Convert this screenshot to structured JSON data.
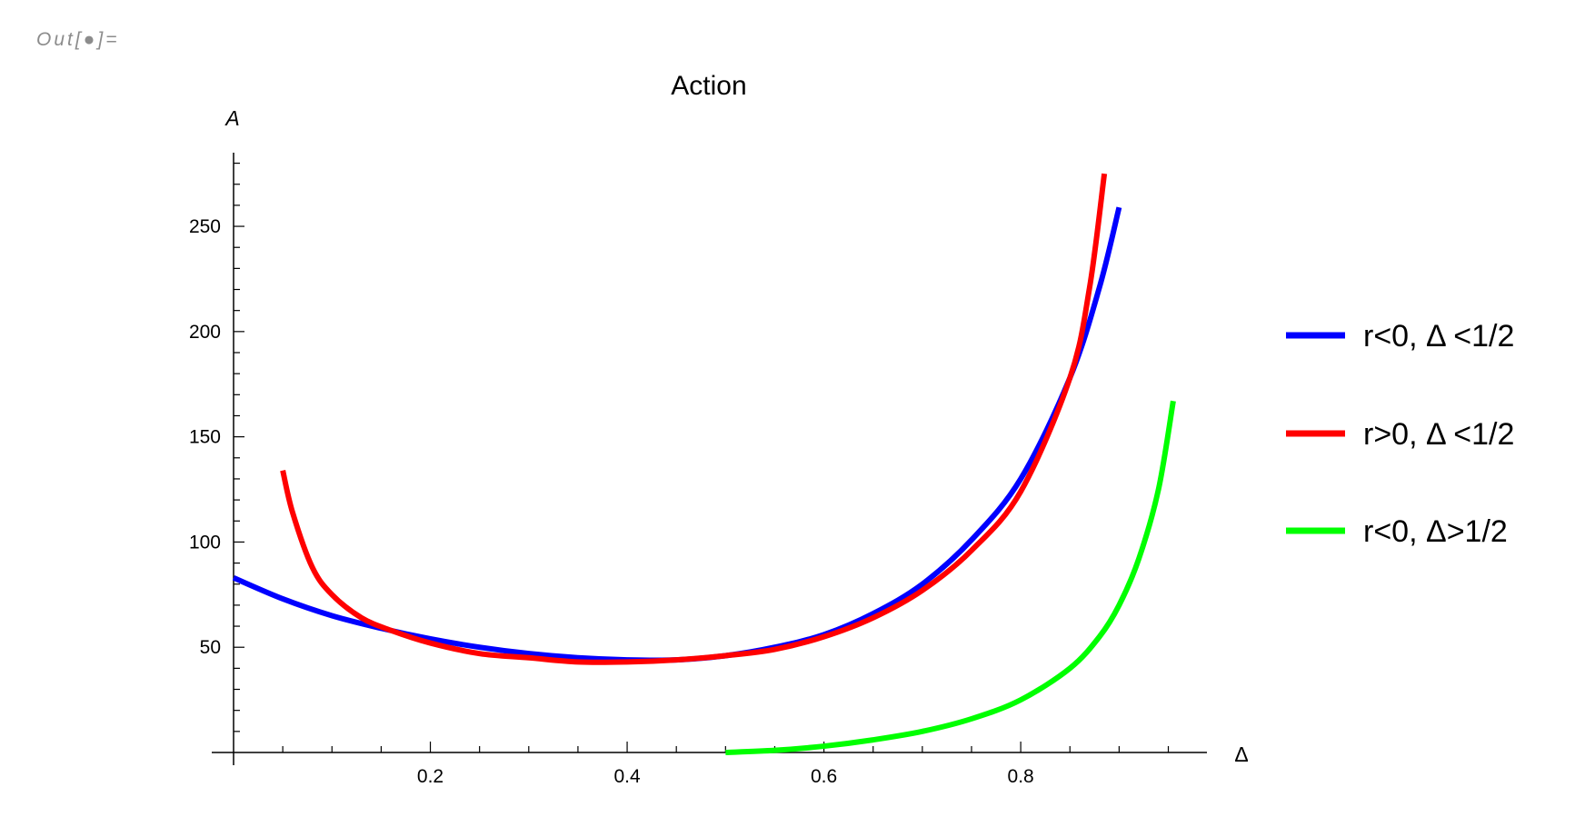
{
  "output_label": "Out[●]=",
  "chart_data": {
    "type": "line",
    "title": "Action",
    "xlabel": "Δ",
    "ylabel": "A",
    "xlim": [
      0,
      0.98
    ],
    "ylim": [
      0,
      285
    ],
    "x_ticks": [
      0.2,
      0.4,
      0.6,
      0.8
    ],
    "x_tick_labels": [
      "0.2",
      "0.4",
      "0.6",
      "0.8"
    ],
    "y_ticks": [
      50,
      100,
      150,
      200,
      250
    ],
    "y_tick_labels": [
      "50",
      "100",
      "150",
      "200",
      "250"
    ],
    "grid": false,
    "legend_position": "right",
    "series": [
      {
        "name": "r<0, Δ <1/2",
        "color": "#0000ff",
        "points": [
          [
            0.0,
            83
          ],
          [
            0.05,
            73
          ],
          [
            0.1,
            65
          ],
          [
            0.15,
            59
          ],
          [
            0.2,
            54
          ],
          [
            0.25,
            50
          ],
          [
            0.3,
            47
          ],
          [
            0.35,
            45
          ],
          [
            0.4,
            44
          ],
          [
            0.45,
            44
          ],
          [
            0.5,
            46
          ],
          [
            0.55,
            50
          ],
          [
            0.6,
            56
          ],
          [
            0.65,
            66
          ],
          [
            0.7,
            80
          ],
          [
            0.75,
            101
          ],
          [
            0.8,
            130
          ],
          [
            0.85,
            178
          ],
          [
            0.88,
            221
          ],
          [
            0.9,
            259
          ]
        ]
      },
      {
        "name": "r>0, Δ <1/2",
        "color": "#ff0000",
        "points": [
          [
            0.05,
            134
          ],
          [
            0.06,
            114
          ],
          [
            0.08,
            88
          ],
          [
            0.1,
            75
          ],
          [
            0.13,
            64
          ],
          [
            0.16,
            58
          ],
          [
            0.2,
            52
          ],
          [
            0.25,
            47
          ],
          [
            0.3,
            45
          ],
          [
            0.35,
            43
          ],
          [
            0.4,
            43
          ],
          [
            0.45,
            44
          ],
          [
            0.5,
            46
          ],
          [
            0.55,
            49
          ],
          [
            0.6,
            55
          ],
          [
            0.65,
            64
          ],
          [
            0.7,
            77
          ],
          [
            0.75,
            96
          ],
          [
            0.8,
            124
          ],
          [
            0.85,
            178
          ],
          [
            0.87,
            221
          ],
          [
            0.885,
            275
          ]
        ]
      },
      {
        "name": "r<0, Δ>1/2",
        "color": "#00ff00",
        "points": [
          [
            0.5,
            0
          ],
          [
            0.55,
            1
          ],
          [
            0.6,
            3
          ],
          [
            0.65,
            6
          ],
          [
            0.7,
            10
          ],
          [
            0.75,
            16
          ],
          [
            0.8,
            25
          ],
          [
            0.85,
            40
          ],
          [
            0.88,
            55
          ],
          [
            0.9,
            70
          ],
          [
            0.92,
            92
          ],
          [
            0.94,
            125
          ],
          [
            0.955,
            167
          ]
        ]
      }
    ]
  }
}
